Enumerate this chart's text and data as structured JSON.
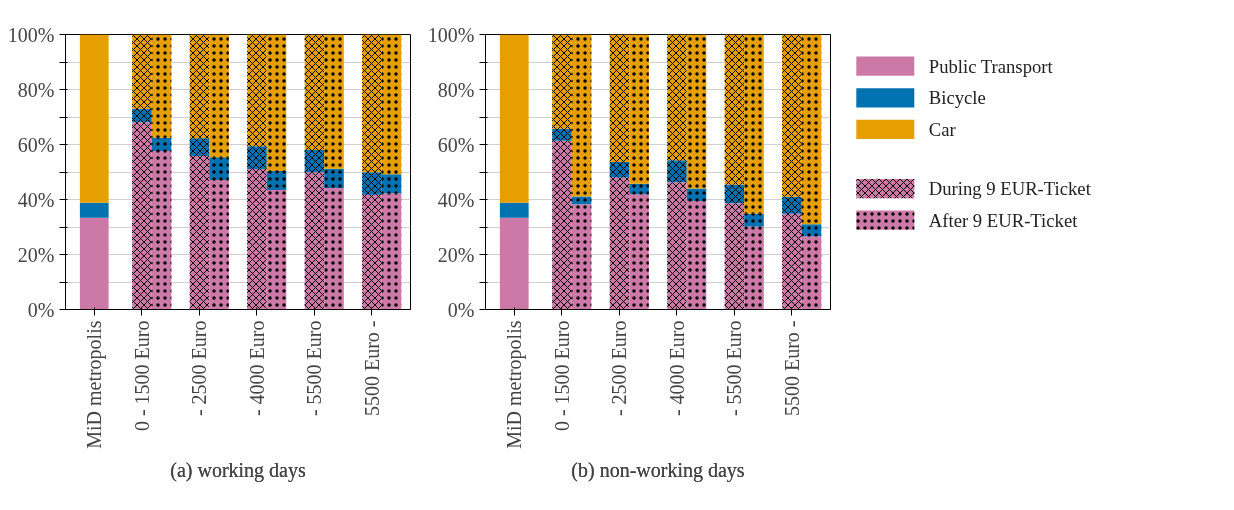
{
  "chart_data": [
    {
      "type": "bar",
      "title": "(a) working days",
      "stacked": true,
      "categories": [
        "MiD metropolis",
        "0 - 1500 Euro",
        null,
        "- 2500 Euro",
        null,
        "- 4000 Euro",
        null,
        "- 5500 Euro",
        null,
        "5500 Euro -",
        null
      ],
      "ylim": [
        0,
        100
      ],
      "yticks": [
        {
          "value": 0,
          "label": "0%"
        },
        {
          "value": 10,
          "label": null
        },
        {
          "value": 20,
          "label": "20%"
        },
        {
          "value": 30,
          "label": null
        },
        {
          "value": 40,
          "label": "40%"
        },
        {
          "value": 50,
          "label": null
        },
        {
          "value": 60,
          "label": "60%"
        },
        {
          "value": 70,
          "label": null
        },
        {
          "value": 80,
          "label": "80%"
        },
        {
          "value": 90,
          "label": null
        },
        {
          "value": 100,
          "label": "100%"
        }
      ],
      "grid": "y",
      "series": [
        {
          "color": "#cc79a7",
          "values": [
            33.4,
            null,
            null,
            null,
            null,
            null,
            null,
            null,
            null,
            null,
            null
          ]
        },
        {
          "color": "#0072b2",
          "values": [
            5.4,
            null,
            null,
            null,
            null,
            null,
            null,
            null,
            null,
            null,
            null
          ]
        },
        {
          "color": "#e69f00",
          "values": [
            61.2,
            null,
            null,
            null,
            null,
            null,
            null,
            null,
            null,
            null,
            null
          ]
        },
        {
          "color": "#cc79a7",
          "values": [
            null,
            68.1,
            null,
            55.8,
            null,
            51.1,
            null,
            49.9,
            null,
            41.7,
            null
          ]
        },
        {
          "color": "#0072b2",
          "values": [
            null,
            4.9,
            null,
            6.5,
            null,
            8.3,
            null,
            8.1,
            null,
            8.2,
            null
          ]
        },
        {
          "color": "#e69f00",
          "values": [
            null,
            27.0,
            null,
            37.7,
            null,
            40.6,
            null,
            42.0,
            null,
            50.1,
            null
          ]
        },
        {
          "color": "#cc79a7",
          "values": [
            null,
            null,
            57.6,
            null,
            47.1,
            null,
            43.5,
            null,
            44.2,
            null,
            42.3
          ]
        },
        {
          "color": "#0072b2",
          "values": [
            null,
            null,
            4.9,
            null,
            8.3,
            null,
            6.9,
            null,
            7.0,
            null,
            6.9
          ]
        },
        {
          "color": "#e69f00",
          "values": [
            null,
            null,
            37.5,
            null,
            44.6,
            null,
            49.6,
            null,
            48.8,
            null,
            50.8
          ]
        }
      ]
    },
    {
      "type": "bar",
      "title": "(b) non-working days",
      "stacked": true,
      "categories": [
        "MiD metropolis",
        "0 - 1500 Euro",
        null,
        "- 2500 Euro",
        null,
        "- 4000 Euro",
        null,
        "- 5500 Euro",
        null,
        "5500 Euro -",
        null
      ],
      "ylim": [
        0,
        100
      ],
      "yticks": [
        {
          "value": 0,
          "label": "0%"
        },
        {
          "value": 10,
          "label": null
        },
        {
          "value": 20,
          "label": "20%"
        },
        {
          "value": 30,
          "label": null
        },
        {
          "value": 40,
          "label": "40%"
        },
        {
          "value": 50,
          "label": null
        },
        {
          "value": 60,
          "label": "60%"
        },
        {
          "value": 70,
          "label": null
        },
        {
          "value": 80,
          "label": "80%"
        },
        {
          "value": 90,
          "label": null
        },
        {
          "value": 100,
          "label": "100%"
        }
      ],
      "grid": "y",
      "legend": "right",
      "series": [
        {
          "name": "Public Transport",
          "color": "#cc79a7",
          "values": [
            33.4,
            null,
            null,
            null,
            null,
            null,
            null,
            null,
            null,
            null,
            null
          ]
        },
        {
          "name": "Bicycle",
          "color": "#0072b2",
          "values": [
            5.4,
            null,
            null,
            null,
            null,
            null,
            null,
            null,
            null,
            null,
            null
          ]
        },
        {
          "name": "Car",
          "color": "#e69f00",
          "values": [
            61.2,
            null,
            null,
            null,
            null,
            null,
            null,
            null,
            null,
            null,
            null
          ]
        },
        {
          "name": "During 9 EUR-Ticket",
          "color": "#cc79a7",
          "values": [
            null,
            61.4,
            null,
            48.0,
            null,
            46.3,
            null,
            38.6,
            null,
            34.8,
            null
          ]
        },
        {
          "color": "#0072b2",
          "values": [
            null,
            4.3,
            null,
            5.6,
            null,
            8.0,
            null,
            6.9,
            null,
            6.2,
            null
          ]
        },
        {
          "color": "#e69f00",
          "values": [
            null,
            34.3,
            null,
            46.4,
            null,
            45.7,
            null,
            54.5,
            null,
            59.0,
            null
          ]
        },
        {
          "name": "After 9 EUR-Ticket",
          "color": "#cc79a7",
          "values": [
            null,
            null,
            38.3,
            null,
            41.9,
            null,
            39.5,
            null,
            30.2,
            null,
            26.6
          ]
        },
        {
          "color": "#0072b2",
          "values": [
            null,
            null,
            2.8,
            null,
            3.8,
            null,
            4.5,
            null,
            4.6,
            null,
            4.4
          ]
        },
        {
          "color": "#e69f00",
          "values": [
            null,
            null,
            58.9,
            null,
            54.3,
            null,
            56.0,
            null,
            65.2,
            null,
            69.0
          ]
        }
      ]
    }
  ]
}
